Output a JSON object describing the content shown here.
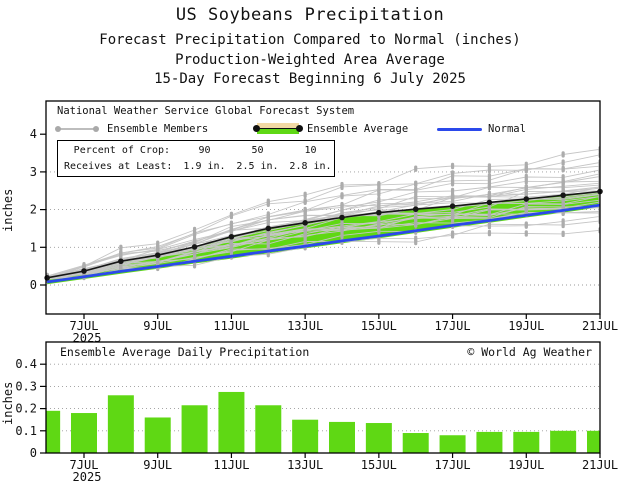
{
  "header": {
    "title": "US Soybeans Precipitation",
    "sub1": "Forecast Precipitation Compared to Normal (inches)",
    "sub2": "Production-Weighted Area Average",
    "sub3": "15-Day Forecast Beginning 6 July 2025"
  },
  "legend": {
    "header": "National Weather Service Global Forecast System",
    "items": [
      {
        "label": "Ensemble Members",
        "swatch": "gray-line-with-dots"
      },
      {
        "label": "Ensemble Average",
        "swatch": "tan-green-band-black-line"
      },
      {
        "label": "Normal",
        "swatch": "blue-line"
      }
    ]
  },
  "stats_box": {
    "rows": [
      {
        "label": "Percent of Crop:",
        "values": [
          "90",
          "50",
          "10"
        ]
      },
      {
        "label": "Receives at Least:",
        "values": [
          "1.9 in.",
          "2.5 in.",
          "2.8 in."
        ]
      }
    ]
  },
  "colors": {
    "green": "#5FD814",
    "tan": "#F2D9A4",
    "blue": "#2B49EB",
    "member_line": "#C6C6C6",
    "member_marker": "#ACACAC",
    "average_line": "#161616",
    "grid": "#9A9A9A",
    "frame": "#000000",
    "text": "#111111"
  },
  "chart_data": [
    {
      "type": "line",
      "ylabel": "inches",
      "x_days": [
        6,
        7,
        8,
        9,
        10,
        11,
        12,
        13,
        14,
        15,
        16,
        17,
        18,
        19,
        20,
        21
      ],
      "x_tick_days": [
        7,
        9,
        11,
        13,
        15,
        17,
        19,
        21
      ],
      "x_tick_labels": [
        "7JUL",
        "9JUL",
        "11JUL",
        "13JUL",
        "15JUL",
        "17JUL",
        "19JUL",
        "21JUL"
      ],
      "year_label": "2025",
      "y_ticks": [
        0,
        1,
        2,
        3,
        4
      ],
      "gridline_values": [
        0,
        1,
        2,
        3
      ],
      "ylim": [
        -0.8,
        4.85
      ],
      "series": [
        {
          "name": "Ensemble Average",
          "values": [
            0.19,
            0.37,
            0.63,
            0.79,
            1.01,
            1.28,
            1.5,
            1.65,
            1.79,
            1.92,
            2.01,
            2.09,
            2.19,
            2.28,
            2.38,
            2.48
          ]
        },
        {
          "name": "Normal",
          "values": [
            0.08,
            0.22,
            0.36,
            0.49,
            0.63,
            0.76,
            0.9,
            1.03,
            1.17,
            1.3,
            1.44,
            1.58,
            1.71,
            1.85,
            1.98,
            2.12
          ]
        }
      ],
      "band": {
        "between": [
          "Normal",
          "Ensemble Average"
        ],
        "color_above_normal": "green",
        "color_below_normal": "tan"
      },
      "ensemble_members_count": 30,
      "ensemble_members_final_values": [
        1.45,
        1.7,
        1.8,
        1.9,
        1.95,
        2.0,
        2.05,
        2.1,
        2.15,
        2.2,
        2.25,
        2.3,
        2.35,
        2.4,
        2.42,
        2.45,
        2.5,
        2.55,
        2.58,
        2.6,
        2.65,
        2.7,
        2.75,
        2.85,
        2.95,
        3.05,
        3.15,
        3.25,
        3.45,
        3.6
      ]
    },
    {
      "type": "bar",
      "title": "Ensemble Average Daily Precipitation",
      "copyright": "© World Ag Weather",
      "ylabel": "inches",
      "x_days": [
        6,
        7,
        8,
        9,
        10,
        11,
        12,
        13,
        14,
        15,
        16,
        17,
        18,
        19,
        20,
        21
      ],
      "x_tick_days": [
        7,
        9,
        11,
        13,
        15,
        17,
        19,
        21
      ],
      "x_tick_labels": [
        "7JUL",
        "9JUL",
        "11JUL",
        "13JUL",
        "15JUL",
        "17JUL",
        "19JUL",
        "21JUL"
      ],
      "year_label": "2025",
      "y_ticks": [
        0,
        0.1,
        0.2,
        0.3,
        0.4
      ],
      "gridline_values": [
        0.1,
        0.2,
        0.3,
        0.4
      ],
      "ylim": [
        0,
        0.5
      ],
      "values": [
        0.19,
        0.18,
        0.26,
        0.16,
        0.215,
        0.275,
        0.215,
        0.15,
        0.14,
        0.135,
        0.09,
        0.08,
        0.095,
        0.095,
        0.1,
        0.1
      ]
    }
  ]
}
